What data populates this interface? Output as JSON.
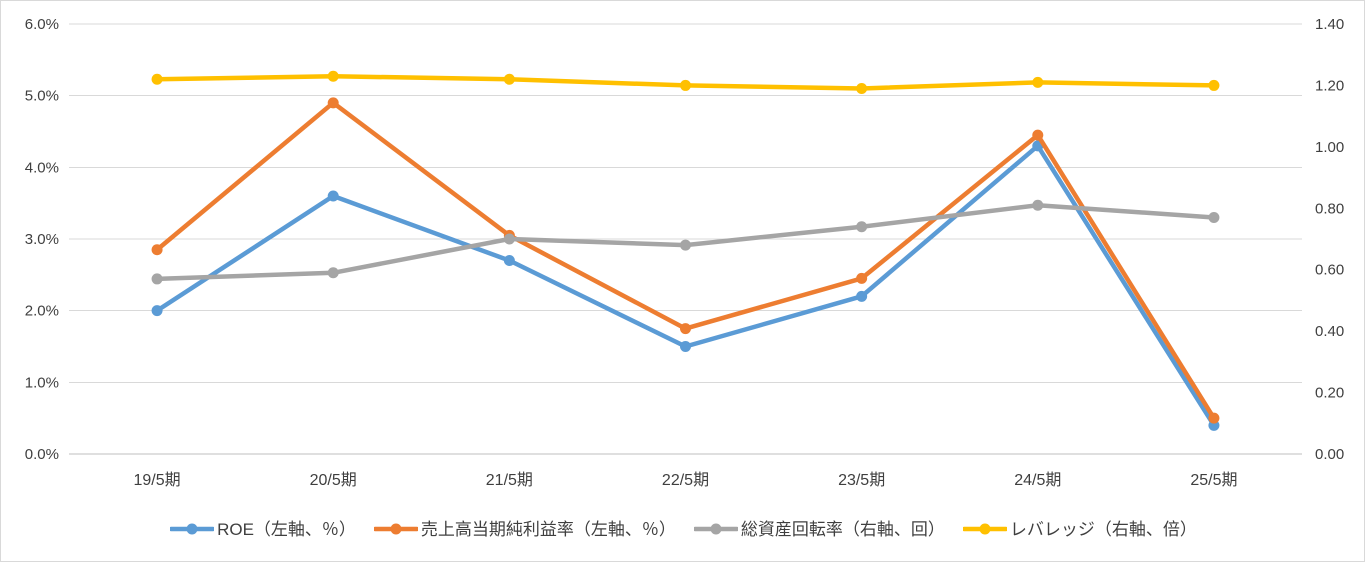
{
  "chart_data": {
    "type": "line",
    "categories": [
      "19/5期",
      "20/5期",
      "21/5期",
      "22/5期",
      "23/5期",
      "24/5期",
      "25/5期"
    ],
    "series": [
      {
        "id": "roe",
        "name": "ROE（左軸、％）",
        "axis": "left",
        "color": "#5B9BD5",
        "values": [
          2.0,
          3.6,
          2.7,
          1.5,
          2.2,
          4.3,
          0.4
        ]
      },
      {
        "id": "net-profit-margin",
        "name": "売上高当期純利益率（左軸、％）",
        "axis": "left",
        "color": "#ED7D31",
        "values": [
          2.85,
          4.9,
          3.05,
          1.75,
          2.45,
          4.45,
          0.5
        ]
      },
      {
        "id": "asset-turnover",
        "name": "総資産回転率（右軸、回）",
        "axis": "right",
        "color": "#A5A5A5",
        "values": [
          0.57,
          0.59,
          0.7,
          0.68,
          0.74,
          0.81,
          0.77
        ]
      },
      {
        "id": "leverage",
        "name": "レバレッジ（右軸、倍）",
        "axis": "right",
        "color": "#FFC000",
        "values": [
          1.22,
          1.23,
          1.22,
          1.2,
          1.19,
          1.21,
          1.2
        ]
      }
    ],
    "left_axis": {
      "min": 0,
      "max": 6,
      "tick_labels": [
        "6.0%",
        "5.0%",
        "4.0%",
        "3.0%",
        "2.0%",
        "1.0%",
        "0.0%"
      ]
    },
    "right_axis": {
      "min": 0,
      "max": 1.4,
      "tick_labels": [
        "1.40",
        "1.20",
        "1.00",
        "0.80",
        "0.60",
        "0.40",
        "0.20",
        "0.00"
      ]
    },
    "legend_position": "bottom",
    "grid": true,
    "colors": {
      "gridline": "#D9D9D9",
      "axis_line": "#BFBFBF",
      "tick_text": "#3F3F3F",
      "border": "#D9D9D9"
    }
  }
}
